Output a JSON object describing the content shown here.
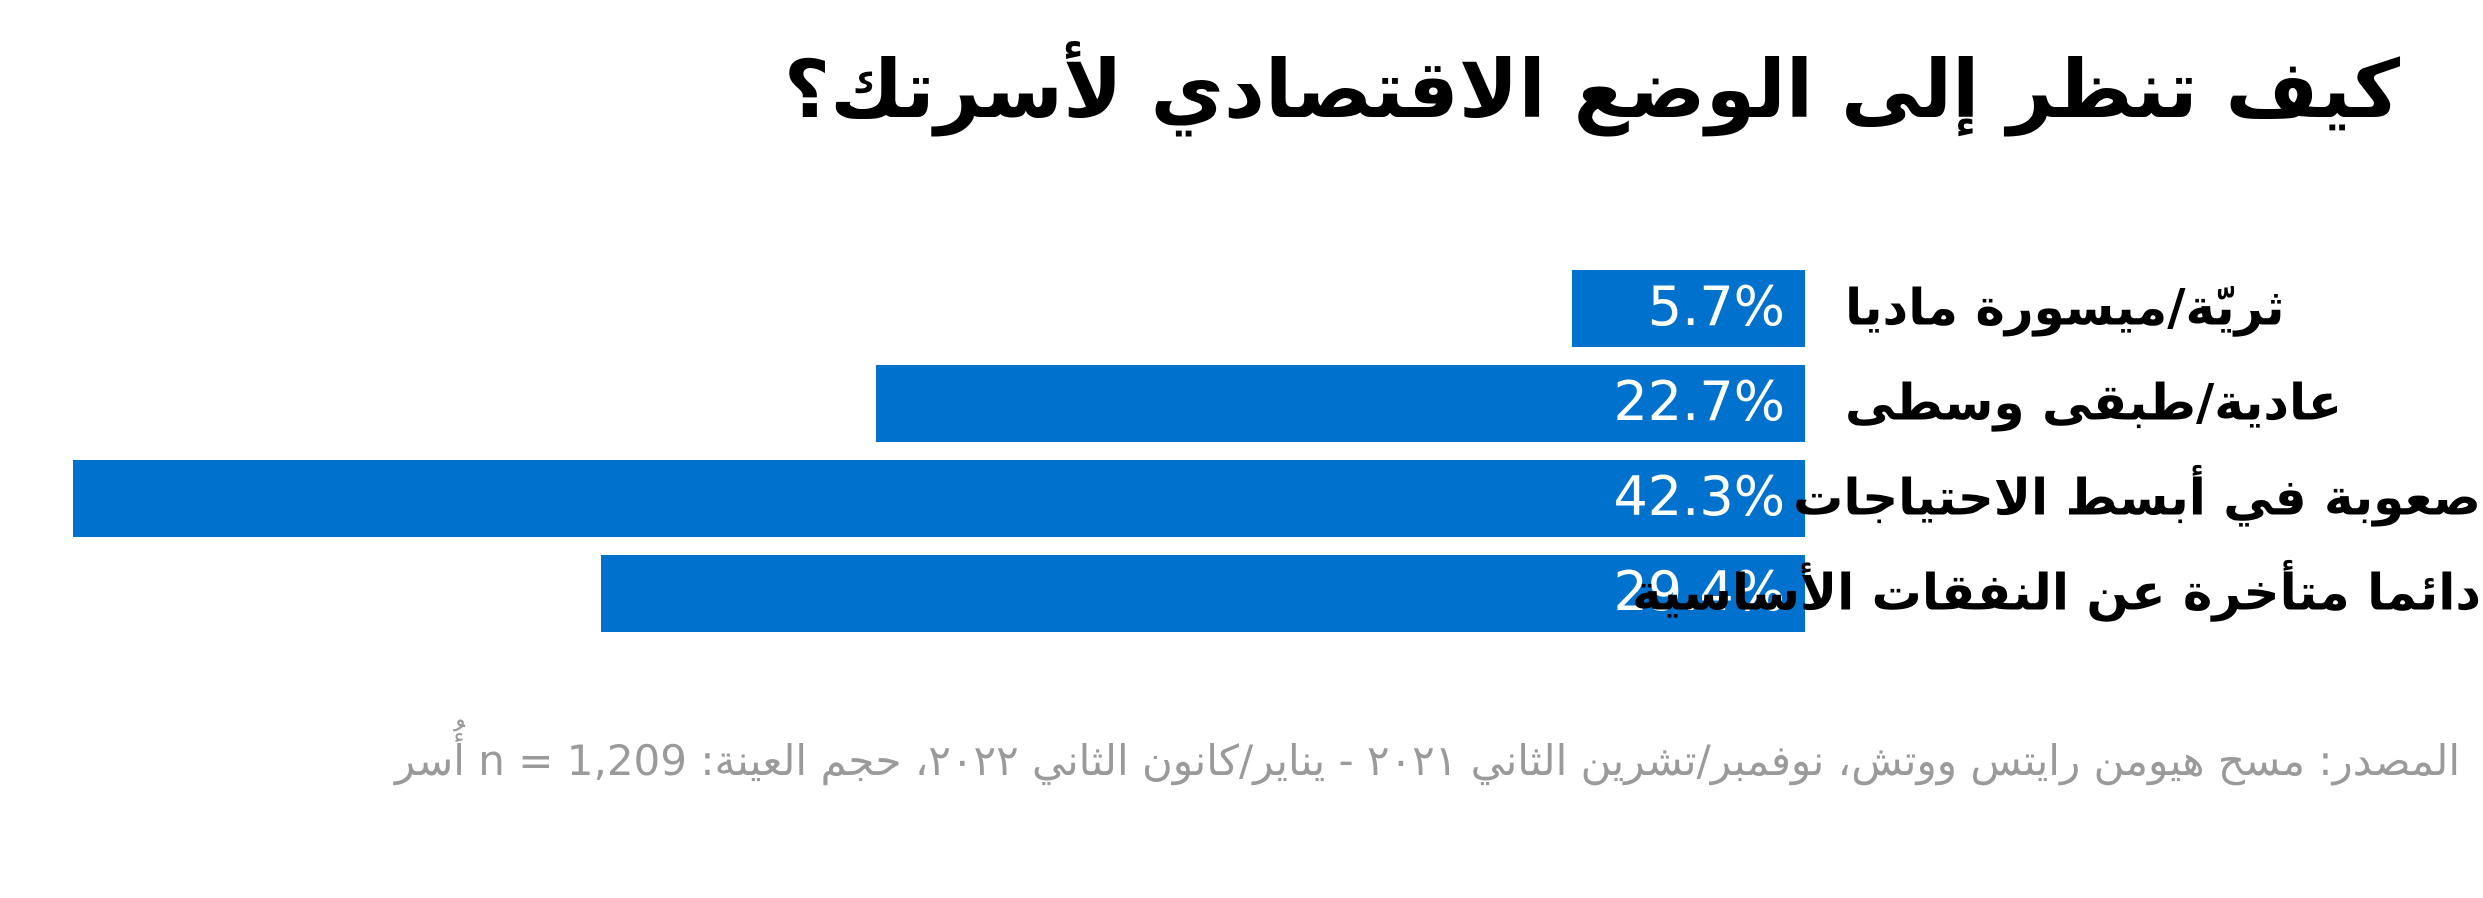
{
  "page": {
    "background": "#ffffff"
  },
  "chart_data": {
    "type": "bar",
    "orientation": "horizontal",
    "direction": "rtl",
    "title": "كيف تنظر إلى الوضع الاقتصادي لأسرتك؟",
    "categories": [
      "ثريّة/ميسورة ماديا",
      "عادية/طبقى وسطى",
      "صعوبة في أبسط الاحتياجات",
      "دائما متأخرة عن النفقات الأساسية"
    ],
    "values": [
      5.7,
      22.7,
      42.3,
      29.4
    ],
    "value_labels": [
      "5.7%",
      "22.7%",
      "42.3%",
      "29.4%"
    ],
    "xlim": [
      0,
      42.3
    ],
    "grid": false,
    "legend": false,
    "value_label_position": "inside-end",
    "bar_color": "#0072ce",
    "value_text_color": "#ffffff",
    "label_text_color": "#000000",
    "source_text_color": "#9a9a9a",
    "source_note": "المصدر: مسح هيومن رايتس ووتش، نوفمبر/تشرين الثاني ٢٠٢١ - يناير/كانون الثاني ٢٠٢٢، حجم العينة: n = 1,209 أُسر"
  }
}
